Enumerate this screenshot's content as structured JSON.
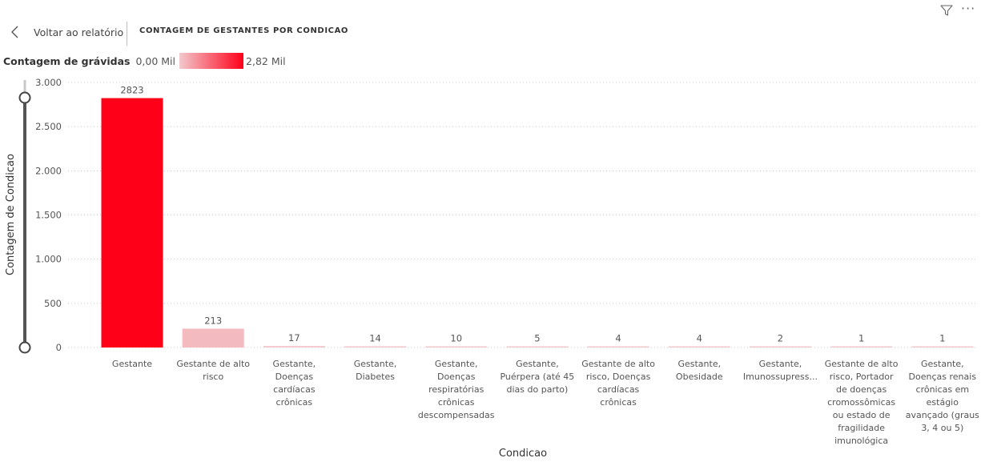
{
  "header": {
    "back_label": "Voltar ao relatório",
    "title": "CONTAGEM DE GESTANTES POR CONDICAO",
    "filter_icon": "filter-icon",
    "more_icon": "more-options-icon"
  },
  "legend": {
    "title": "Contagem de grávidas",
    "min_label": "0,00 Mil",
    "max_label": "2,82 Mil",
    "color_min": "#f2c9cd",
    "color_max": "#ff0019"
  },
  "chart_data": {
    "type": "bar",
    "xlabel": "Condicao",
    "ylabel": "Contagem de Condicao",
    "ylim": [
      0,
      3000
    ],
    "yticks": [
      0,
      500,
      1000,
      1500,
      2000,
      2500,
      3000
    ],
    "ytick_labels": [
      "0",
      "500",
      "1.000",
      "1.500",
      "2.000",
      "2.500",
      "3.000"
    ],
    "grid": true,
    "categories": [
      [
        "Gestante"
      ],
      [
        "Gestante de alto",
        "risco"
      ],
      [
        "Gestante,",
        "Doenças",
        "cardíacas",
        "crônicas"
      ],
      [
        "Gestante,",
        "Diabetes"
      ],
      [
        "Gestante,",
        "Doenças",
        "respiratórias",
        "crônicas",
        "descompensadas"
      ],
      [
        "Gestante,",
        "Puérpera (até 45",
        "dias do parto)"
      ],
      [
        "Gestante de alto",
        "risco, Doenças",
        "cardíacas",
        "crônicas"
      ],
      [
        "Gestante,",
        "Obesidade"
      ],
      [
        "Gestante,",
        "Imunossupress..."
      ],
      [
        "Gestante de alto",
        "risco, Portador",
        "de doenças",
        "cromossômicas",
        "ou estado de",
        "fragilidade",
        "imunológica"
      ],
      [
        "Gestante,",
        "Doenças renais",
        "crônicas em",
        "estágio",
        "avançado (graus",
        "3, 4 ou 5)"
      ]
    ],
    "values": [
      2823,
      213,
      17,
      14,
      10,
      5,
      4,
      4,
      2,
      1,
      1
    ],
    "data_labels": [
      "2823",
      "213",
      "17",
      "14",
      "10",
      "5",
      "4",
      "4",
      "2",
      "1",
      "1"
    ],
    "color_scale": {
      "min_color": "#f2c9cd",
      "max_color": "#ff0019"
    }
  }
}
